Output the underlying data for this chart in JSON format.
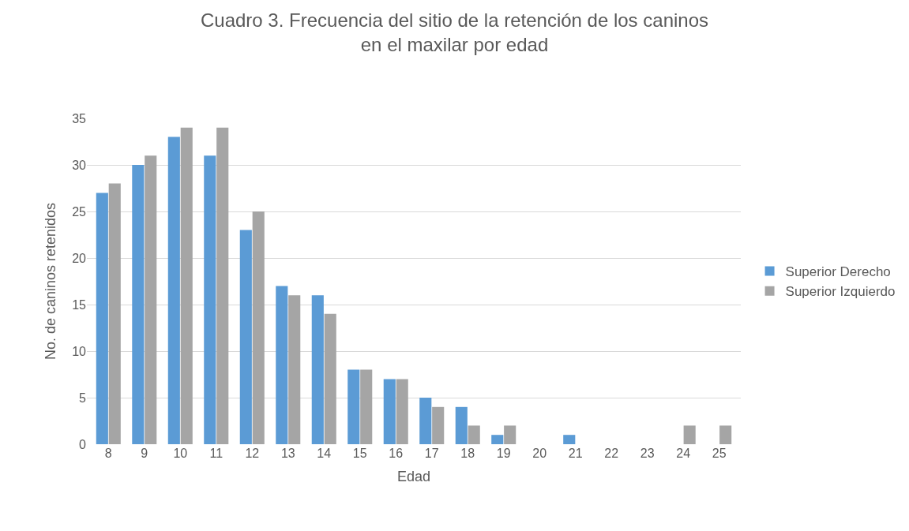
{
  "chart_data": {
    "type": "bar",
    "title": "Cuadro 3. Frecuencia del sitio de la retención de los caninos en el maxilar por edad",
    "xlabel": "Edad",
    "ylabel": "No. de caninos retenidos",
    "categories": [
      "8",
      "9",
      "10",
      "11",
      "12",
      "13",
      "14",
      "15",
      "16",
      "17",
      "18",
      "19",
      "20",
      "21",
      "22",
      "23",
      "24",
      "25"
    ],
    "series": [
      {
        "name": "Superior Derecho",
        "color": "#5b9bd5",
        "values": [
          27,
          30,
          33,
          31,
          23,
          17,
          16,
          8,
          7,
          5,
          4,
          1,
          0,
          1,
          0,
          0,
          0,
          0
        ]
      },
      {
        "name": "Superior Izquierdo",
        "color": "#a5a5a5",
        "values": [
          28,
          31,
          34,
          34,
          25,
          16,
          14,
          8,
          7,
          4,
          2,
          2,
          0,
          0,
          0,
          0,
          2,
          2
        ]
      }
    ],
    "ylim": [
      0,
      35
    ],
    "yticks": [
      0,
      5,
      10,
      15,
      20,
      25,
      30,
      35
    ],
    "grid": "y",
    "legend": "right"
  }
}
